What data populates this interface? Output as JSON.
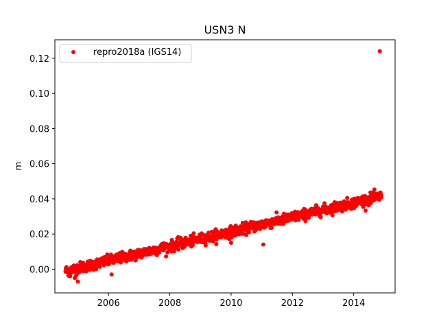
{
  "chart_data": {
    "type": "scatter",
    "title": "USN3 N",
    "xlabel": "",
    "ylabel": "m",
    "xlim": [
      2004.25,
      2015.35
    ],
    "ylim": [
      -0.0135,
      0.1305
    ],
    "x_ticks": [
      2006,
      2008,
      2010,
      2012,
      2014
    ],
    "x_tick_labels": [
      "2006",
      "2008",
      "2010",
      "2012",
      "2014"
    ],
    "y_ticks": [
      0.0,
      0.02,
      0.04,
      0.06,
      0.08,
      0.1,
      0.12
    ],
    "y_tick_labels": [
      "0.00",
      "0.02",
      "0.04",
      "0.06",
      "0.08",
      "0.10",
      "0.12"
    ],
    "grid": false,
    "legend_position": "top-left",
    "series": [
      {
        "name": "repro2018a (IGS14)",
        "color": "#ff0000",
        "marker": "circle",
        "trend": {
          "x_start": 2004.6,
          "y_start": -0.001,
          "x_end": 2014.9,
          "y_end": 0.0415
        },
        "noise_std": 0.0015,
        "points": [
          {
            "x": 2004.6,
            "y": -0.001
          },
          {
            "x": 2004.75,
            "y": -0.004
          },
          {
            "x": 2004.9,
            "y": -0.005
          },
          {
            "x": 2005.0,
            "y": -0.007
          },
          {
            "x": 2005.5,
            "y": 0.003
          },
          {
            "x": 2006.0,
            "y": 0.005
          },
          {
            "x": 2006.1,
            "y": -0.003
          },
          {
            "x": 2006.5,
            "y": 0.006
          },
          {
            "x": 2007.0,
            "y": 0.008
          },
          {
            "x": 2007.5,
            "y": 0.011
          },
          {
            "x": 2008.0,
            "y": 0.013
          },
          {
            "x": 2008.5,
            "y": 0.015
          },
          {
            "x": 2009.0,
            "y": 0.016
          },
          {
            "x": 2009.5,
            "y": 0.019
          },
          {
            "x": 2010.0,
            "y": 0.02
          },
          {
            "x": 2010.0,
            "y": 0.015
          },
          {
            "x": 2010.5,
            "y": 0.023
          },
          {
            "x": 2011.0,
            "y": 0.025
          },
          {
            "x": 2011.05,
            "y": 0.014
          },
          {
            "x": 2011.5,
            "y": 0.027
          },
          {
            "x": 2012.0,
            "y": 0.03
          },
          {
            "x": 2012.5,
            "y": 0.032
          },
          {
            "x": 2013.0,
            "y": 0.034
          },
          {
            "x": 2013.5,
            "y": 0.036
          },
          {
            "x": 2014.0,
            "y": 0.037
          },
          {
            "x": 2014.5,
            "y": 0.04
          },
          {
            "x": 2014.85,
            "y": 0.124
          }
        ]
      }
    ]
  }
}
